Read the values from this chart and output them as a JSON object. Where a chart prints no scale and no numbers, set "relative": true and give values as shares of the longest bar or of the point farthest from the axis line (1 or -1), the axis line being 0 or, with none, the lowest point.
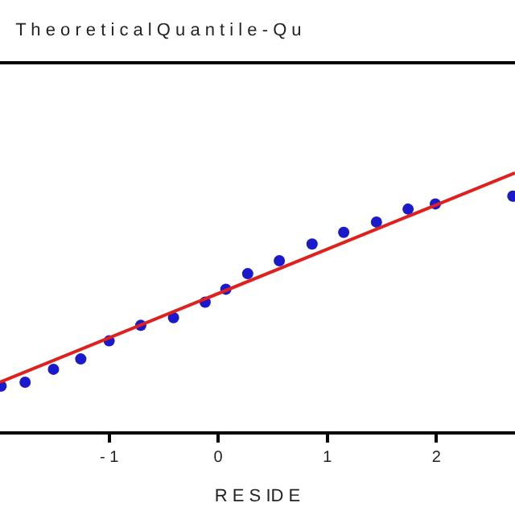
{
  "chart_data": {
    "type": "scatter",
    "title": "T h e o r e t i c a l Q u a n t i l e - Q u",
    "xlabel": "R E S ID E",
    "relative": true,
    "legend": false,
    "x": [
      -1.99,
      -1.77,
      -1.51,
      -1.26,
      -1.0,
      -0.71,
      -0.41,
      -0.12,
      0.07,
      0.27,
      0.56,
      0.86,
      1.15,
      1.45,
      1.74,
      1.99,
      2.7
    ],
    "xlim": [
      -2.0,
      2.72
    ],
    "xticks": [
      -1,
      0,
      1,
      2
    ],
    "series": [
      {
        "color": "#1a1acc",
        "marker": "circle",
        "values": [
          0.175,
          0.19,
          0.24,
          0.28,
          0.35,
          0.41,
          0.44,
          0.5,
          0.55,
          0.61,
          0.66,
          0.725,
          0.77,
          0.81,
          0.86,
          0.88,
          0.91
        ]
      },
      {
        "type": "line",
        "color": "#e0201c",
        "x": [
          -2.0,
          2.72
        ],
        "values": [
          0.19,
          1.0
        ]
      }
    ]
  }
}
